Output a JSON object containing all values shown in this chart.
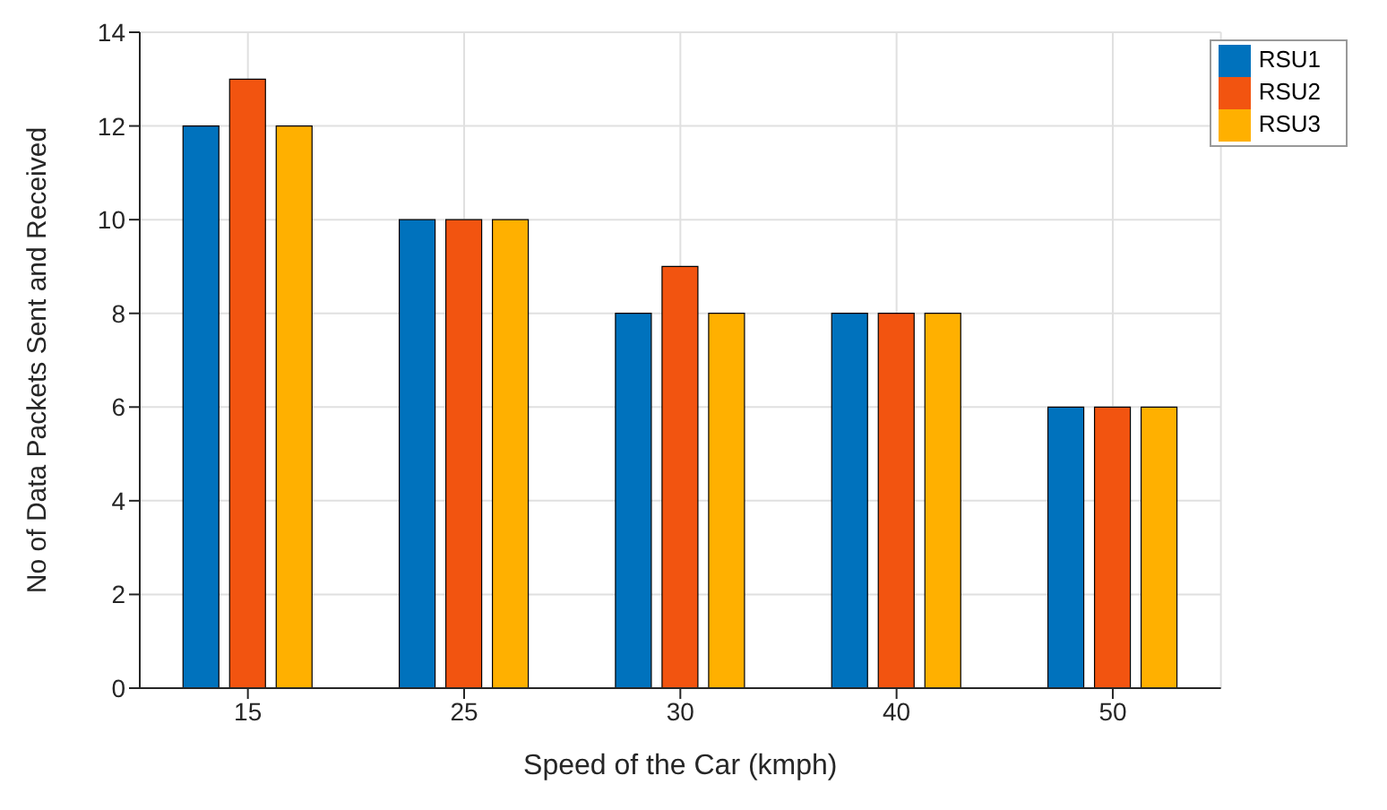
{
  "chart_data": {
    "type": "bar",
    "xlabel": "Speed of the Car (kmph)",
    "ylabel": "No of Data Packets Sent and Received",
    "categories": [
      "15",
      "25",
      "30",
      "40",
      "50"
    ],
    "series": [
      {
        "name": "RSU1",
        "color": "#0072bd",
        "values": [
          12,
          10,
          8,
          8,
          6
        ]
      },
      {
        "name": "RSU2",
        "color": "#f25410",
        "values": [
          13,
          10,
          9,
          8,
          6
        ]
      },
      {
        "name": "RSU3",
        "color": "#ffb000",
        "values": [
          12,
          10,
          8,
          8,
          6
        ]
      }
    ],
    "ylim": [
      0,
      14
    ],
    "yticks": [
      0,
      2,
      4,
      6,
      8,
      10,
      12,
      14
    ],
    "grid": true,
    "legend": "top right"
  }
}
